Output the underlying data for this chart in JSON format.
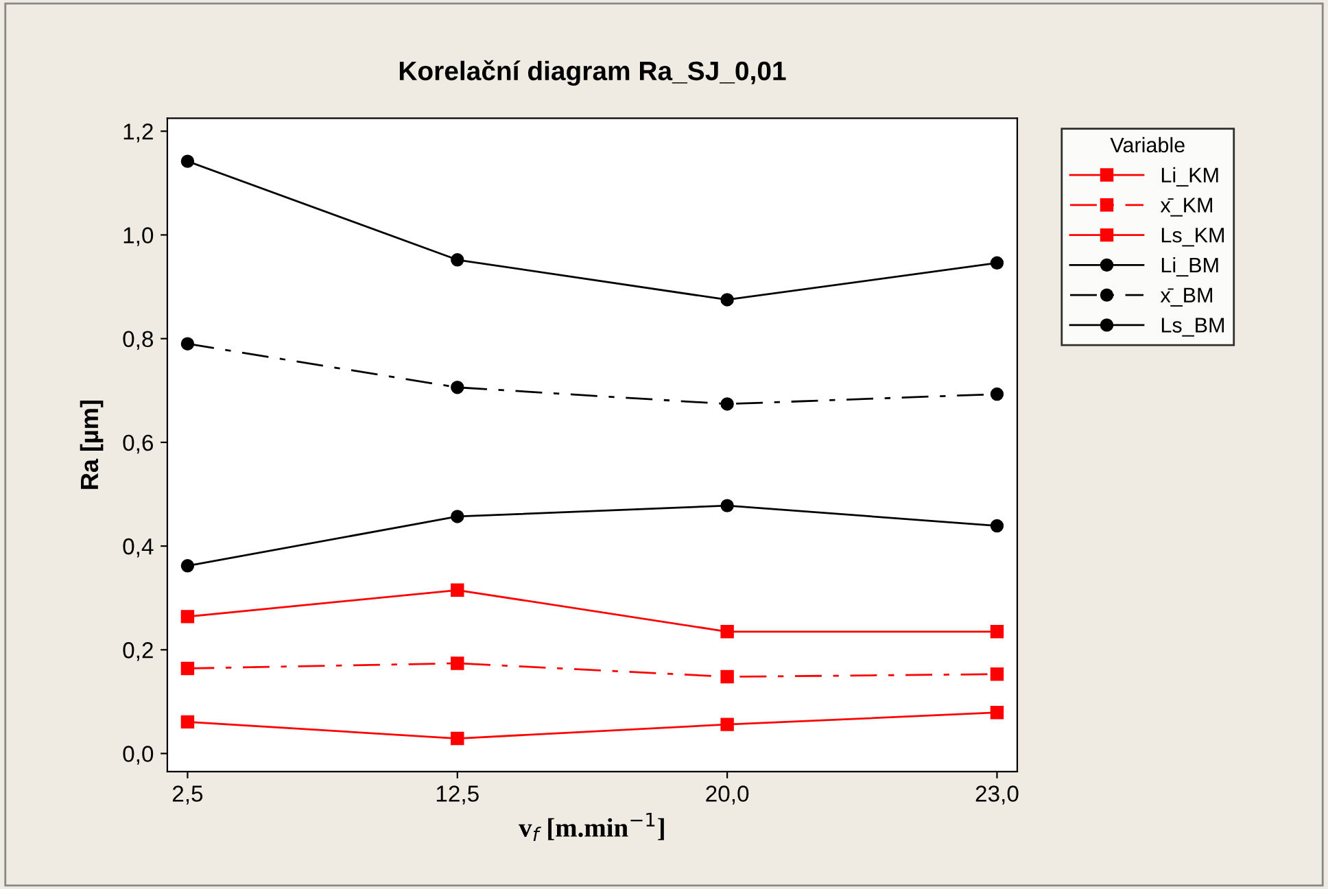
{
  "chart_data": {
    "type": "line",
    "title": "Korelační diagram Ra_SJ_0,01",
    "xlabel": "v$_{f}$ [m.min$^{−1}$]",
    "ylabel": "Ra [µm]",
    "legend_title": "Variable",
    "categories": [
      "2,5",
      "12,5",
      "20,0",
      "23,0"
    ],
    "ylim": [
      -0.035,
      1.225
    ],
    "yticks": [
      {
        "value": 0,
        "label": "0,0"
      },
      {
        "value": 0.2,
        "label": "0,2"
      },
      {
        "value": 0.4,
        "label": "0,4"
      },
      {
        "value": 0.6,
        "label": "0,6"
      },
      {
        "value": 0.8,
        "label": "0,8"
      },
      {
        "value": 1.0,
        "label": "1,0"
      },
      {
        "value": 1.2,
        "label": "1,2"
      }
    ],
    "grid": false,
    "legend": "top right",
    "series": [
      {
        "name": "Li_KM",
        "color": "#ff0000",
        "marker": "square",
        "line_style": "solid",
        "values": [
          0.061,
          0.029,
          0.056,
          0.079
        ]
      },
      {
        "name": "x̄_KM",
        "color": "#ff0000",
        "marker": "square",
        "line_style": "dashdot",
        "values": [
          0.164,
          0.174,
          0.148,
          0.153
        ]
      },
      {
        "name": "Ls_KM",
        "color": "#ff0000",
        "marker": "square",
        "line_style": "solid",
        "values": [
          0.264,
          0.315,
          0.235,
          0.235
        ]
      },
      {
        "name": "Li_BM",
        "color": "#000000",
        "marker": "circle",
        "line_style": "solid",
        "values": [
          0.362,
          0.457,
          0.478,
          0.439
        ]
      },
      {
        "name": "x̄_BM",
        "color": "#000000",
        "marker": "circle",
        "line_style": "dashdot",
        "values": [
          0.79,
          0.706,
          0.674,
          0.693
        ]
      },
      {
        "name": "Ls_BM",
        "color": "#000000",
        "marker": "circle",
        "line_style": "solid",
        "values": [
          1.142,
          0.952,
          0.875,
          0.946
        ]
      }
    ]
  }
}
